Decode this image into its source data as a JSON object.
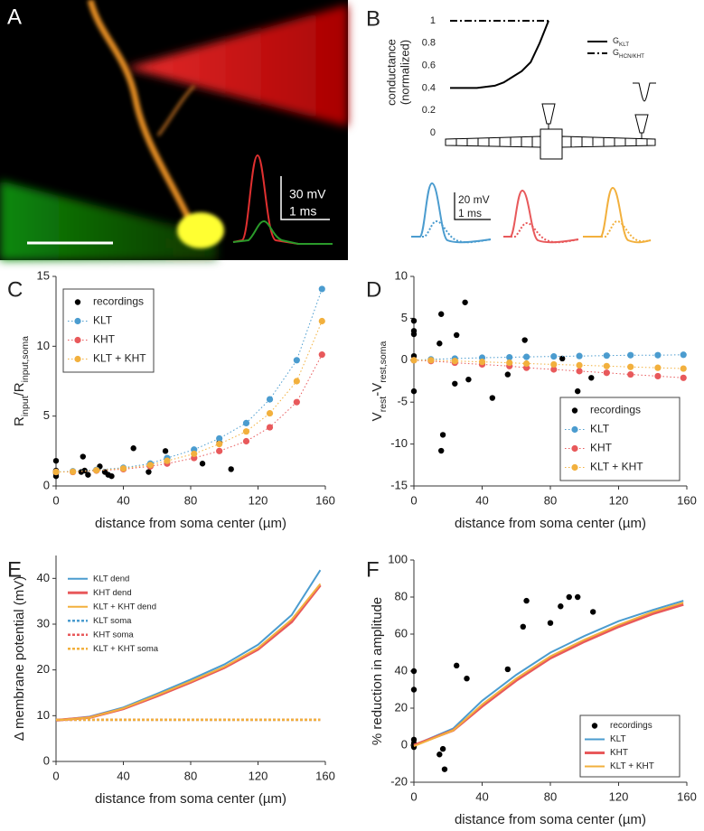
{
  "figure_A": {
    "panel": "A",
    "scale_labels": [
      "30 mV",
      "1 ms"
    ]
  },
  "figure_B_traces": {
    "scale_labels": [
      "20 mV",
      "1 ms"
    ]
  },
  "chart_data": [
    {
      "type": "line",
      "panel": "B",
      "ylabel_lines": [
        "conductance",
        "(normalized)"
      ],
      "categories": [
        null,
        null,
        null,
        null,
        null,
        null,
        null,
        null,
        null,
        null,
        null,
        null
      ],
      "ylim": [
        0,
        1
      ],
      "yticks": [
        0,
        0.2,
        0.4,
        0.6,
        0.8,
        1
      ],
      "legend": "upper right",
      "series": [
        {
          "name": [
            "G",
            "KLT"
          ],
          "color": "#000000",
          "kind": "solid",
          "values": [
            0.4,
            0.4,
            0.4,
            0.4,
            0.41,
            0.42,
            0.45,
            0.5,
            0.55,
            0.63,
            0.8,
            1
          ]
        },
        {
          "name": [
            "G",
            "HCN/KHT"
          ],
          "color": "#000000",
          "kind": "dash-dot",
          "values": [
            1,
            1,
            1,
            1,
            1,
            1,
            1,
            1,
            1,
            1,
            1,
            1
          ]
        }
      ]
    },
    {
      "type": "line",
      "panel": "C",
      "xlabel": "distance from soma center (µm)",
      "ylabel": [
        "R",
        "input",
        "/R",
        "input,soma"
      ],
      "xlim": [
        0,
        160
      ],
      "xticks": [
        0,
        40,
        80,
        120,
        160
      ],
      "ylim": [
        0,
        15
      ],
      "yticks": [
        0,
        5,
        10,
        15
      ],
      "legend": "upper left",
      "series": [
        {
          "name": "recordings",
          "color": "#000000",
          "kind": "scatter",
          "x": [
            0,
            0,
            0,
            0,
            15,
            16,
            17,
            19,
            24,
            26,
            29,
            31,
            33,
            46,
            55,
            65,
            87,
            97,
            104
          ],
          "values": [
            1.8,
            0.9,
            0.7,
            1.1,
            1.0,
            2.1,
            1.1,
            0.8,
            1.1,
            1.4,
            1.0,
            0.8,
            0.7,
            2.7,
            1.0,
            2.5,
            1.6,
            3.1,
            1.2
          ]
        },
        {
          "name": "KLT",
          "color": "#4b9ccf",
          "kind": "dotted-markers",
          "x": [
            0,
            10,
            24,
            40,
            56,
            66,
            82,
            97,
            113,
            127,
            143,
            158
          ],
          "values": [
            1,
            1.05,
            1.15,
            1.3,
            1.6,
            2.0,
            2.6,
            3.4,
            4.5,
            6.2,
            9.0,
            14.1
          ]
        },
        {
          "name": "KHT",
          "color": "#e8595b",
          "kind": "dotted-markers",
          "x": [
            0,
            10,
            24,
            40,
            56,
            66,
            82,
            97,
            113,
            127,
            143,
            158
          ],
          "values": [
            1,
            1.0,
            1.1,
            1.2,
            1.4,
            1.6,
            2.0,
            2.5,
            3.2,
            4.2,
            6.0,
            9.4
          ]
        },
        {
          "name": "KLT + KHT",
          "color": "#f2b03d",
          "kind": "dotted-markers",
          "x": [
            0,
            10,
            24,
            40,
            56,
            66,
            82,
            97,
            113,
            127,
            143,
            158
          ],
          "values": [
            1,
            1.02,
            1.12,
            1.25,
            1.5,
            1.8,
            2.3,
            3.0,
            3.9,
            5.2,
            7.5,
            11.8
          ]
        }
      ]
    },
    {
      "type": "line",
      "panel": "D",
      "xlabel": "distance from soma center (µm)",
      "ylabel": [
        "V",
        "rest",
        "-V",
        "rest,soma"
      ],
      "xlim": [
        0,
        160
      ],
      "xticks": [
        0,
        40,
        80,
        120,
        160
      ],
      "ylim": [
        -15,
        10
      ],
      "yticks": [
        -15,
        -10,
        -5,
        0,
        5,
        10
      ],
      "legend": "lower right",
      "series": [
        {
          "name": "recordings",
          "color": "#000000",
          "kind": "scatter",
          "x": [
            0,
            0,
            0,
            0,
            0,
            15,
            16,
            16,
            17,
            24,
            25,
            30,
            32,
            46,
            55,
            65,
            87,
            96,
            104
          ],
          "values": [
            4.7,
            3.5,
            3.1,
            0.5,
            -3.7,
            2.0,
            5.5,
            -10.8,
            -8.9,
            -2.8,
            3.0,
            6.9,
            -2.3,
            -4.5,
            -1.7,
            2.4,
            0.2,
            -3.7,
            -2.1
          ]
        },
        {
          "name": "KLT",
          "color": "#4b9ccf",
          "kind": "dotted-markers",
          "x": [
            0,
            10,
            24,
            40,
            56,
            66,
            82,
            97,
            113,
            127,
            143,
            158
          ],
          "values": [
            0,
            0.1,
            0.2,
            0.3,
            0.35,
            0.4,
            0.45,
            0.5,
            0.55,
            0.6,
            0.6,
            0.65
          ]
        },
        {
          "name": "KHT",
          "color": "#e8595b",
          "kind": "dotted-markers",
          "x": [
            0,
            10,
            24,
            40,
            56,
            66,
            82,
            97,
            113,
            127,
            143,
            158
          ],
          "values": [
            0,
            -0.1,
            -0.3,
            -0.5,
            -0.7,
            -0.9,
            -1.1,
            -1.3,
            -1.5,
            -1.7,
            -1.9,
            -2.1
          ]
        },
        {
          "name": "KLT + KHT",
          "color": "#f2b03d",
          "kind": "dotted-markers",
          "x": [
            0,
            10,
            24,
            40,
            56,
            66,
            82,
            97,
            113,
            127,
            143,
            158
          ],
          "values": [
            0,
            0,
            -0.1,
            -0.2,
            -0.3,
            -0.4,
            -0.5,
            -0.6,
            -0.7,
            -0.8,
            -0.9,
            -1.0
          ]
        }
      ]
    },
    {
      "type": "line",
      "panel": "E",
      "xlabel": "distance from soma center (µm)",
      "ylabel": "Δ membrane potential (mV)",
      "xlim": [
        0,
        160
      ],
      "xticks": [
        0,
        40,
        80,
        120,
        160
      ],
      "ylim": [
        0,
        45
      ],
      "yticks": [
        0,
        10,
        20,
        30,
        40
      ],
      "legend": "upper left",
      "series": [
        {
          "name": "KLT dend",
          "color": "#4b9ccf",
          "kind": "solid",
          "x": [
            0,
            20,
            40,
            60,
            80,
            100,
            120,
            140,
            157
          ],
          "values": [
            9,
            9.8,
            11.8,
            14.8,
            17.9,
            21.2,
            25.5,
            32,
            41.8
          ]
        },
        {
          "name": "KHT dend",
          "color": "#e8595b",
          "kind": "thick",
          "x": [
            0,
            20,
            40,
            60,
            80,
            100,
            120,
            140,
            157
          ],
          "values": [
            9,
            9.6,
            11.5,
            14.3,
            17.3,
            20.5,
            24.5,
            30.5,
            38.5
          ]
        },
        {
          "name": "KLT + KHT dend",
          "color": "#f2b03d",
          "kind": "solid",
          "x": [
            0,
            20,
            40,
            60,
            80,
            100,
            120,
            140,
            157
          ],
          "values": [
            9,
            9.6,
            11.6,
            14.5,
            17.5,
            20.7,
            24.8,
            31,
            38.8
          ]
        },
        {
          "name": "KLT soma",
          "color": "#4b9ccf",
          "kind": "dotted",
          "x": [
            0,
            20,
            40,
            60,
            80,
            100,
            120,
            140,
            157
          ],
          "values": [
            9.1,
            9.1,
            9.1,
            9.1,
            9.1,
            9.1,
            9.1,
            9.1,
            9.1
          ]
        },
        {
          "name": "KHT soma",
          "color": "#e8595b",
          "kind": "dotted",
          "x": [
            0,
            20,
            40,
            60,
            80,
            100,
            120,
            140,
            157
          ],
          "values": [
            9.1,
            9.1,
            9.1,
            9.1,
            9.1,
            9.1,
            9.1,
            9.1,
            9.1
          ]
        },
        {
          "name": "KLT + KHT soma",
          "color": "#f2b03d",
          "kind": "dotted",
          "x": [
            0,
            20,
            40,
            60,
            80,
            100,
            120,
            140,
            157
          ],
          "values": [
            9.1,
            9.1,
            9.1,
            9.1,
            9.1,
            9.1,
            9.1,
            9.1,
            9.1
          ]
        }
      ]
    },
    {
      "type": "line",
      "panel": "F",
      "xlabel": "distance from soma center (µm)",
      "ylabel": "% reduction in amplitude",
      "xlim": [
        0,
        160
      ],
      "xticks": [
        0,
        40,
        80,
        120,
        160
      ],
      "ylim": [
        -20,
        100
      ],
      "yticks": [
        -20,
        0,
        20,
        40,
        60,
        80,
        100
      ],
      "legend": "lower right",
      "series": [
        {
          "name": "recordings",
          "color": "#000000",
          "kind": "scatter",
          "x": [
            0,
            0,
            0,
            0,
            0,
            15,
            17,
            18,
            25,
            31,
            55,
            64,
            66,
            80,
            86,
            91,
            96,
            105
          ],
          "values": [
            40,
            30,
            3,
            1,
            -1,
            -5,
            -2,
            -13,
            43,
            36,
            41,
            64,
            78,
            66,
            75,
            80,
            80,
            72
          ]
        },
        {
          "name": "KLT",
          "color": "#4b9ccf",
          "kind": "solid",
          "x": [
            0,
            23,
            40,
            60,
            80,
            100,
            120,
            140,
            158
          ],
          "values": [
            0,
            9,
            24,
            38,
            50,
            59,
            67,
            73,
            78
          ]
        },
        {
          "name": "KHT",
          "color": "#e8595b",
          "kind": "thick",
          "x": [
            0,
            23,
            40,
            60,
            80,
            100,
            120,
            140,
            158
          ],
          "values": [
            0,
            8,
            21,
            35,
            47,
            56,
            64,
            71,
            76
          ]
        },
        {
          "name": "KLT + KHT",
          "color": "#f2b03d",
          "kind": "solid",
          "x": [
            0,
            23,
            40,
            60,
            80,
            100,
            120,
            140,
            158
          ],
          "values": [
            -0.5,
            8,
            22,
            36,
            48,
            57,
            65,
            72,
            77
          ]
        }
      ]
    }
  ]
}
